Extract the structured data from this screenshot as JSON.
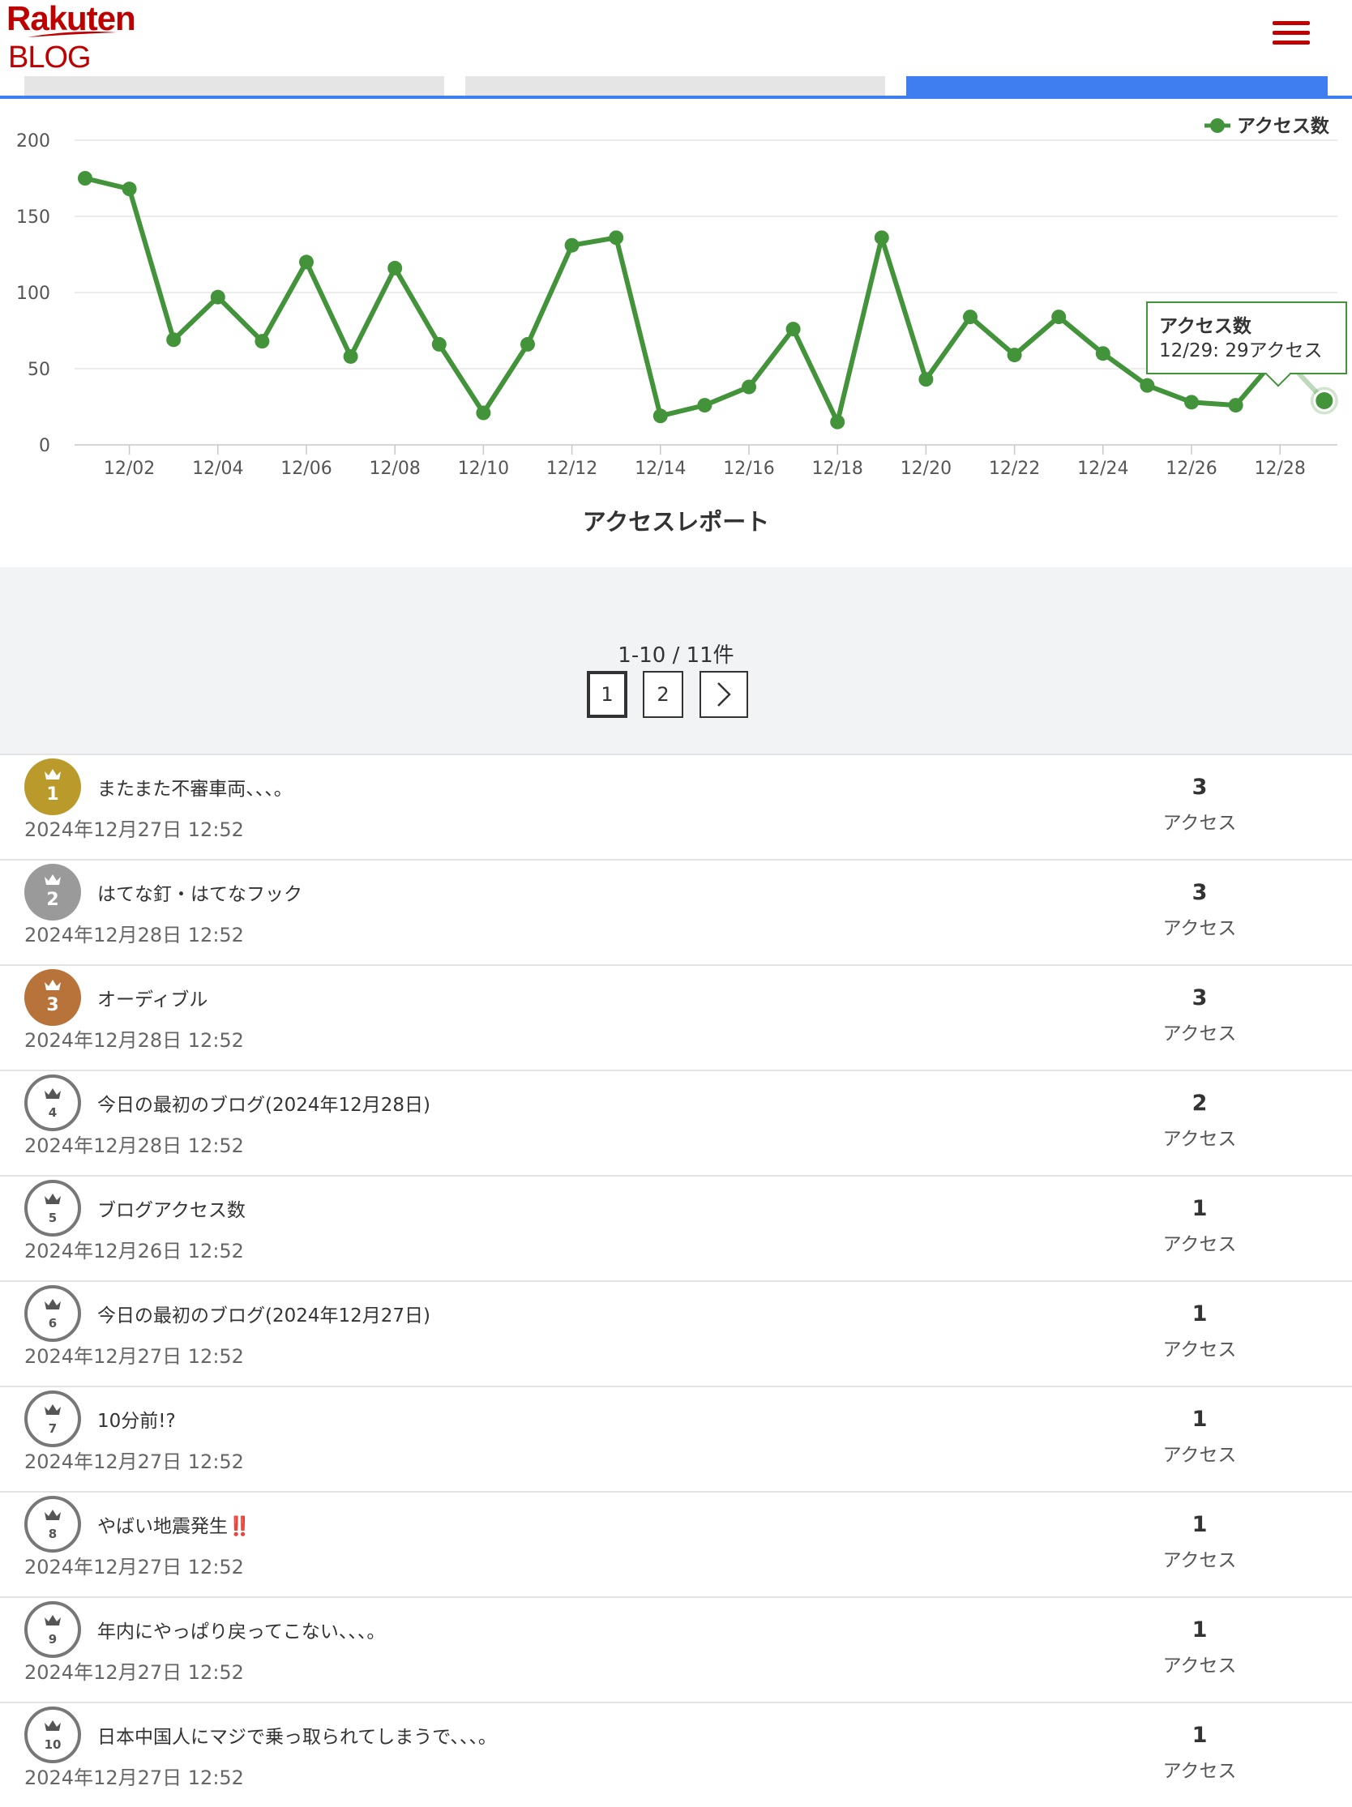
{
  "header": {
    "logo_top": "Rakuten",
    "logo_bottom": "BLOG",
    "brand_color": "#bf0000",
    "menu_icon": "hamburger-icon"
  },
  "tabs": [
    {
      "label": "",
      "active": false
    },
    {
      "label": "",
      "active": false
    },
    {
      "label": "",
      "active": true
    }
  ],
  "colors": {
    "tab_active": "#3f7ef0",
    "tab_inactive": "#e5e5e5",
    "series": "#43933b"
  },
  "chart_data": {
    "type": "line",
    "title": "アクセスレポート",
    "legend": {
      "label": "アクセス数",
      "position": "top-right"
    },
    "x": [
      "12/01",
      "12/02",
      "12/03",
      "12/04",
      "12/05",
      "12/06",
      "12/07",
      "12/08",
      "12/09",
      "12/10",
      "12/11",
      "12/12",
      "12/13",
      "12/14",
      "12/15",
      "12/16",
      "12/17",
      "12/18",
      "12/19",
      "12/20",
      "12/21",
      "12/22",
      "12/23",
      "12/24",
      "12/25",
      "12/26",
      "12/27",
      "12/28",
      "12/29"
    ],
    "series": [
      {
        "name": "アクセス数",
        "values": [
          175,
          168,
          69,
          97,
          68,
          120,
          58,
          116,
          66,
          21,
          66,
          131,
          136,
          19,
          26,
          38,
          76,
          15,
          136,
          43,
          84,
          59,
          84,
          60,
          39,
          28,
          26,
          60,
          29
        ]
      }
    ],
    "x_tick_labels": [
      "12/02",
      "12/04",
      "12/06",
      "12/08",
      "12/10",
      "12/12",
      "12/14",
      "12/16",
      "12/18",
      "12/20",
      "12/22",
      "12/24",
      "12/26",
      "12/28"
    ],
    "y_ticks": [
      0,
      50,
      100,
      150,
      200
    ],
    "ylim": [
      0,
      200
    ],
    "grid": true,
    "tooltip": {
      "title": "アクセス数",
      "text": "12/29: 29アクセス"
    }
  },
  "pagination": {
    "summary": "1-10 / 11件",
    "pages": [
      "1",
      "2"
    ],
    "current": "1",
    "next_icon": "chevron-right-icon"
  },
  "ranking": [
    {
      "rank": "1",
      "title": "またまた不審車両、、、。",
      "date": "2024年12月27日 12:52",
      "count": "3",
      "unit": "アクセス",
      "medal": "gold"
    },
    {
      "rank": "2",
      "title": "はてな釘・はてなフック",
      "date": "2024年12月28日 12:52",
      "count": "3",
      "unit": "アクセス",
      "medal": "silver"
    },
    {
      "rank": "3",
      "title": "オーディブル",
      "date": "2024年12月28日 12:52",
      "count": "3",
      "unit": "アクセス",
      "medal": "bronze"
    },
    {
      "rank": "4",
      "title": "今日の最初のブログ(2024年12月28日)",
      "date": "2024年12月28日 12:52",
      "count": "2",
      "unit": "アクセス",
      "medal": "none"
    },
    {
      "rank": "5",
      "title": "ブログアクセス数",
      "date": "2024年12月26日 12:52",
      "count": "1",
      "unit": "アクセス",
      "medal": "none"
    },
    {
      "rank": "6",
      "title": "今日の最初のブログ(2024年12月27日)",
      "date": "2024年12月27日 12:52",
      "count": "1",
      "unit": "アクセス",
      "medal": "none"
    },
    {
      "rank": "7",
      "title": "10分前!?",
      "date": "2024年12月27日 12:52",
      "count": "1",
      "unit": "アクセス",
      "medal": "none"
    },
    {
      "rank": "8",
      "title": "やばい地震発生",
      "title_suffix": "‼️",
      "date": "2024年12月27日 12:52",
      "count": "1",
      "unit": "アクセス",
      "medal": "none"
    },
    {
      "rank": "9",
      "title": "年内にやっぱり戻ってこない、、、。",
      "date": "2024年12月27日 12:52",
      "count": "1",
      "unit": "アクセス",
      "medal": "none"
    },
    {
      "rank": "10",
      "title": "日本中国人にマジで乗っ取られてしまうで、、、。",
      "date": "2024年12月27日 12:52",
      "count": "1",
      "unit": "アクセス",
      "medal": "none"
    }
  ],
  "medal_colors": {
    "gold": "#b99a2a",
    "silver": "#9a9a9a",
    "bronze": "#b8733a"
  }
}
